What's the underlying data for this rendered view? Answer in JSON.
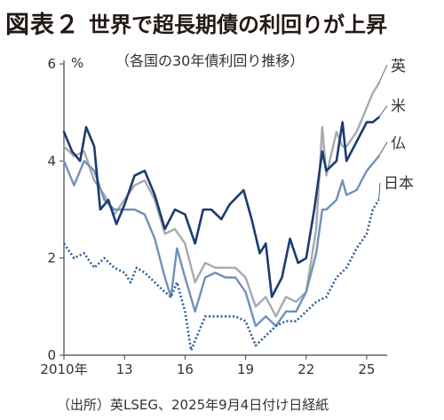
{
  "header": {
    "figure_number": "図表２",
    "title": "世界で超長期債の利回りが上昇",
    "subtitle": "（各国の30年債利回り推移）",
    "unit": "%"
  },
  "source": "（出所）英LSEG、2025年9月4日付け日経紙",
  "chart_data": {
    "type": "line",
    "title": "世界で超長期債の利回りが上昇",
    "subtitle": "（各国の30年債利回り推移）",
    "ylabel": "%",
    "ylim": [
      0,
      6
    ],
    "xlim": [
      2010,
      2025.75
    ],
    "x_ticks": [
      2010,
      2013,
      2016,
      2019,
      2022,
      2025
    ],
    "x_tick_labels": [
      "2010年",
      "13",
      "16",
      "19",
      "22",
      "25"
    ],
    "y_ticks": [
      0,
      2,
      4,
      6
    ],
    "y_tick_labels": [
      "0",
      "2",
      "4",
      "6"
    ],
    "grid": false,
    "legend": "inline labels at right end of each line",
    "series": [
      {
        "name": "英",
        "color": "#a7a9ac",
        "style": "solid",
        "x": [
          2010.0,
          2010.5,
          2011.0,
          2011.5,
          2012.0,
          2012.5,
          2013.0,
          2013.5,
          2014.0,
          2014.5,
          2015.0,
          2015.5,
          2016.0,
          2016.5,
          2017.0,
          2017.5,
          2018.0,
          2018.5,
          2019.0,
          2019.5,
          2020.0,
          2020.5,
          2021.0,
          2021.5,
          2022.0,
          2022.5,
          2022.8,
          2023.0,
          2023.5,
          2023.8,
          2024.0,
          2024.5,
          2025.0,
          2025.3,
          2025.6
        ],
        "values": [
          4.3,
          4.1,
          4.2,
          3.6,
          3.3,
          2.9,
          3.2,
          3.5,
          3.6,
          3.2,
          2.5,
          2.6,
          2.3,
          1.5,
          1.9,
          1.8,
          1.8,
          1.8,
          1.6,
          1.0,
          1.2,
          0.8,
          1.2,
          1.1,
          1.3,
          2.6,
          4.7,
          3.7,
          4.6,
          4.3,
          4.3,
          4.6,
          5.1,
          5.4,
          5.6
        ]
      },
      {
        "name": "米",
        "color": "#1b3b70",
        "style": "solid",
        "x": [
          2010.0,
          2010.4,
          2010.8,
          2011.1,
          2011.5,
          2011.8,
          2012.2,
          2012.6,
          2013.0,
          2013.5,
          2014.0,
          2014.5,
          2015.0,
          2015.5,
          2016.0,
          2016.5,
          2016.9,
          2017.3,
          2017.8,
          2018.2,
          2018.9,
          2019.3,
          2019.7,
          2020.0,
          2020.3,
          2020.8,
          2021.2,
          2021.6,
          2022.0,
          2022.4,
          2022.8,
          2023.0,
          2023.5,
          2023.8,
          2024.0,
          2024.5,
          2025.0,
          2025.3,
          2025.6
        ],
        "values": [
          4.6,
          4.2,
          4.0,
          4.7,
          4.3,
          3.0,
          3.2,
          2.7,
          3.1,
          3.7,
          3.8,
          3.3,
          2.6,
          3.0,
          2.9,
          2.3,
          3.0,
          3.0,
          2.8,
          3.1,
          3.4,
          2.8,
          2.1,
          2.3,
          1.2,
          1.6,
          2.4,
          1.9,
          2.0,
          3.0,
          4.2,
          3.8,
          4.0,
          4.8,
          4.0,
          4.4,
          4.8,
          4.8,
          4.9
        ]
      },
      {
        "name": "仏",
        "color": "#6f91b9",
        "style": "solid",
        "x": [
          2010.0,
          2010.5,
          2011.0,
          2011.5,
          2012.0,
          2012.5,
          2013.0,
          2013.5,
          2014.0,
          2014.5,
          2015.0,
          2015.3,
          2015.6,
          2016.0,
          2016.5,
          2017.0,
          2017.5,
          2018.0,
          2018.5,
          2019.0,
          2019.5,
          2020.0,
          2020.5,
          2021.0,
          2021.5,
          2022.0,
          2022.5,
          2022.8,
          2023.0,
          2023.5,
          2023.8,
          2024.0,
          2024.5,
          2025.0,
          2025.6
        ],
        "values": [
          4.0,
          3.5,
          4.0,
          3.8,
          3.2,
          3.0,
          3.0,
          3.0,
          2.9,
          2.4,
          1.6,
          1.2,
          2.2,
          1.6,
          0.9,
          1.6,
          1.7,
          1.6,
          1.6,
          1.3,
          0.6,
          0.8,
          0.6,
          0.9,
          0.9,
          1.3,
          2.1,
          3.0,
          3.0,
          3.2,
          3.6,
          3.3,
          3.4,
          3.8,
          4.1
        ]
      },
      {
        "name": "日本",
        "color": "#2e5f96",
        "style": "dotted",
        "x": [
          2010.0,
          2010.5,
          2011.0,
          2011.5,
          2012.0,
          2012.5,
          2013.0,
          2013.3,
          2013.6,
          2014.0,
          2014.5,
          2015.0,
          2015.3,
          2015.6,
          2016.0,
          2016.3,
          2016.6,
          2017.0,
          2017.5,
          2018.0,
          2018.5,
          2019.0,
          2019.5,
          2020.0,
          2020.5,
          2021.0,
          2021.5,
          2022.0,
          2022.5,
          2023.0,
          2023.5,
          2024.0,
          2024.5,
          2025.0,
          2025.3,
          2025.6
        ],
        "values": [
          2.3,
          2.0,
          2.1,
          1.8,
          2.0,
          1.8,
          1.7,
          1.5,
          1.8,
          1.7,
          1.5,
          1.3,
          1.2,
          1.5,
          0.9,
          0.1,
          0.4,
          0.8,
          0.8,
          0.8,
          0.8,
          0.7,
          0.2,
          0.4,
          0.6,
          0.7,
          0.7,
          0.9,
          1.1,
          1.2,
          1.6,
          1.8,
          2.2,
          2.5,
          3.0,
          3.2
        ]
      }
    ]
  }
}
